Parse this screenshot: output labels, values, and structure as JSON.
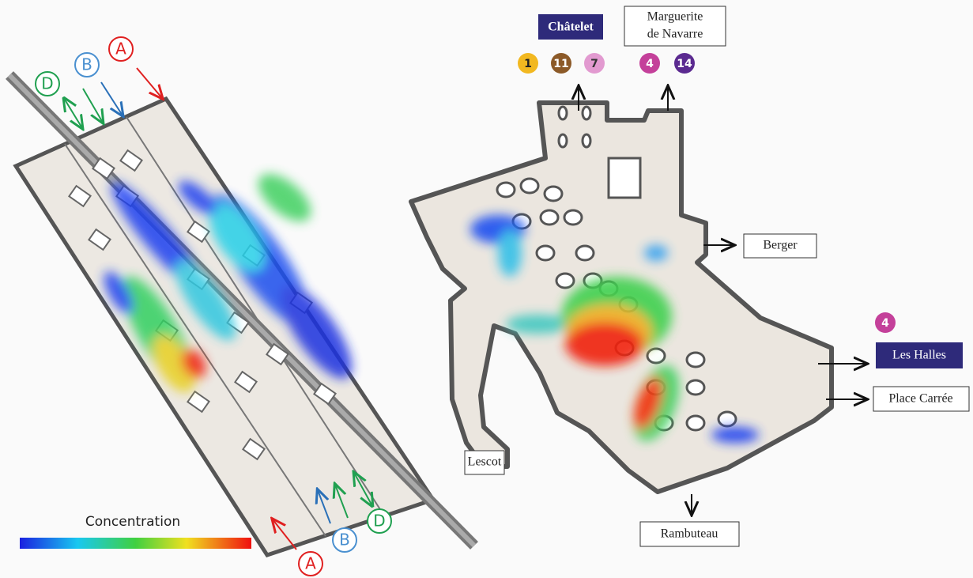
{
  "left_view": {
    "markers_top": [
      "D",
      "B",
      "A"
    ],
    "markers_bottom": [
      "A",
      "B",
      "D"
    ]
  },
  "legend": {
    "title": "Concentration"
  },
  "right_view": {
    "chatelet": {
      "label": "Châtelet",
      "lines": [
        "1",
        "11",
        "7"
      ]
    },
    "marguerite": {
      "label_lines": [
        "Marguerite",
        "de Navarre"
      ],
      "lines": [
        "4",
        "14"
      ]
    },
    "les_halles": {
      "label": "Les Halles",
      "lines": [
        "4"
      ]
    },
    "exits": {
      "berger": "Berger",
      "place_carree": "Place Carrée",
      "lescot": "Lescot",
      "rambuteau": "Rambuteau"
    }
  }
}
